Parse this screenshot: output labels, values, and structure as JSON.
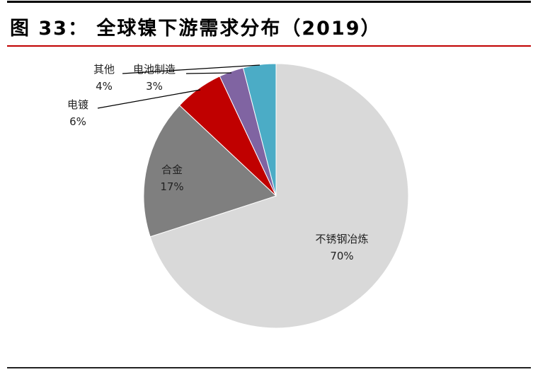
{
  "figure": {
    "title": "图 33： 全球镍下游需求分布（2019）"
  },
  "chart_data": {
    "type": "pie",
    "title": "",
    "slices": [
      {
        "label": "不锈钢冶炼",
        "value": 70,
        "value_label": "70%",
        "color": "#d9d9d9"
      },
      {
        "label": "合金",
        "value": 17,
        "value_label": "17%",
        "color": "#7f7f7f"
      },
      {
        "label": "电镀",
        "value": 6,
        "value_label": "6%",
        "color": "#c00000"
      },
      {
        "label": "电池制造",
        "value": 3,
        "value_label": "3%",
        "color": "#8064a2"
      },
      {
        "label": "其他",
        "value": 4,
        "value_label": "4%",
        "color": "#4bacc6"
      }
    ],
    "start_angle": "top",
    "direction": "clockwise"
  }
}
